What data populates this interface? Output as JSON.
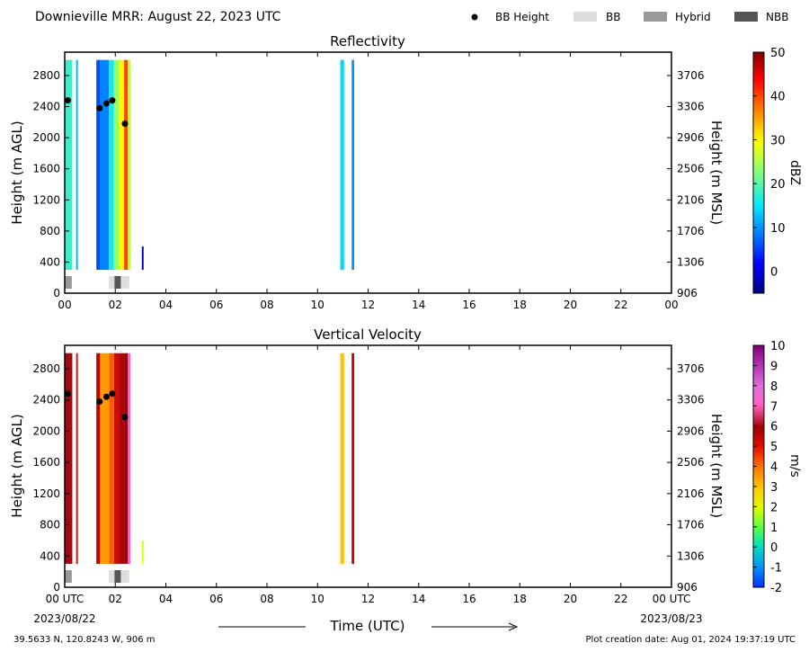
{
  "header": {
    "title": "Downieville MRR:  August 22, 2023 UTC",
    "legend": [
      {
        "label": "BB Height",
        "kind": "dot",
        "color": "#000000"
      },
      {
        "label": "BB",
        "kind": "box",
        "color": "#dddddd"
      },
      {
        "label": "Hybrid",
        "kind": "box",
        "color": "#999999"
      },
      {
        "label": "NBB",
        "kind": "box",
        "color": "#555555"
      }
    ]
  },
  "footer": {
    "location": "39.5633 N, 120.8243 W, 906 m",
    "created": "Plot creation date: Aug 01, 2024 19:37:19 UTC",
    "xlabel": "Time (UTC)",
    "start_date": "2023/08/22",
    "end_date": "2023/08/23"
  },
  "chart_data": [
    {
      "type": "heatmap",
      "title": "Reflectivity",
      "ylabel": "Height (m AGL)",
      "y2label": "Height (m MSL)",
      "cbar_label": "dBZ",
      "xlim": [
        0,
        24
      ],
      "ylim": [
        0,
        3100
      ],
      "x_ticks": [
        "00",
        "02",
        "04",
        "06",
        "08",
        "10",
        "12",
        "14",
        "16",
        "18",
        "20",
        "22",
        "00"
      ],
      "y_ticks": [
        "0",
        "400",
        "800",
        "1200",
        "1600",
        "2000",
        "2400",
        "2800"
      ],
      "y2_ticks": [
        "906",
        "1306",
        "1706",
        "2106",
        "2506",
        "2906",
        "3306",
        "3706"
      ],
      "cbar_ticks": [
        "0",
        "10",
        "20",
        "30",
        "40",
        "50"
      ],
      "cbar_range": [
        -5,
        50
      ],
      "bb_height_points": [
        {
          "time": 0.12,
          "height": 2480
        },
        {
          "time": 1.38,
          "height": 2380
        },
        {
          "time": 1.65,
          "height": 2440
        },
        {
          "time": 1.88,
          "height": 2480
        },
        {
          "time": 2.38,
          "height": 2180
        }
      ],
      "bb_type_bars": [
        {
          "start": 0.0,
          "end": 0.28,
          "type": "Hybrid"
        },
        {
          "start": 1.75,
          "end": 1.97,
          "type": "BB"
        },
        {
          "start": 1.97,
          "end": 2.22,
          "type": "NBB"
        },
        {
          "start": 2.22,
          "end": 2.55,
          "type": "BB"
        }
      ],
      "echo_columns": [
        {
          "start": 0.0,
          "end": 0.3,
          "bottom": 300,
          "top": 3000,
          "value": 18
        },
        {
          "start": 0.45,
          "end": 0.52,
          "bottom": 300,
          "top": 3000,
          "value": 12
        },
        {
          "start": 1.25,
          "end": 1.4,
          "bottom": 300,
          "top": 3000,
          "value": 6
        },
        {
          "start": 1.4,
          "end": 1.75,
          "bottom": 300,
          "top": 3000,
          "value": 9
        },
        {
          "start": 1.75,
          "end": 1.95,
          "bottom": 300,
          "top": 3000,
          "value": 16
        },
        {
          "start": 1.95,
          "end": 2.15,
          "bottom": 300,
          "top": 3000,
          "value": 24
        },
        {
          "start": 2.15,
          "end": 2.35,
          "bottom": 300,
          "top": 3000,
          "value": 30
        },
        {
          "start": 2.35,
          "end": 2.5,
          "bottom": 300,
          "top": 3000,
          "value": 40
        },
        {
          "start": 2.5,
          "end": 2.6,
          "bottom": 300,
          "top": 3000,
          "value": 26
        },
        {
          "start": 3.05,
          "end": 3.12,
          "bottom": 300,
          "top": 600,
          "value": -3
        },
        {
          "start": 10.9,
          "end": 11.05,
          "bottom": 300,
          "top": 3000,
          "value": 14
        },
        {
          "start": 11.35,
          "end": 11.45,
          "bottom": 300,
          "top": 3000,
          "value": 10
        }
      ]
    },
    {
      "type": "heatmap",
      "title": "Vertical Velocity",
      "ylabel": "Height (m AGL)",
      "y2label": "Height (m MSL)",
      "cbar_label": "m/s",
      "xlim": [
        0,
        24
      ],
      "ylim": [
        0,
        3100
      ],
      "x_ticks": [
        "00 UTC",
        "02",
        "04",
        "06",
        "08",
        "10",
        "12",
        "14",
        "16",
        "18",
        "20",
        "22",
        "00 UTC"
      ],
      "y_ticks": [
        "0",
        "400",
        "800",
        "1200",
        "1600",
        "2000",
        "2400",
        "2800"
      ],
      "y2_ticks": [
        "906",
        "1306",
        "1706",
        "2106",
        "2506",
        "2906",
        "3306",
        "3706"
      ],
      "cbar_ticks": [
        "-2",
        "-1",
        "0",
        "1",
        "2",
        "3",
        "4",
        "5",
        "6",
        "7",
        "8",
        "9",
        "10"
      ],
      "cbar_range": [
        -2,
        10
      ],
      "bb_height_points": [
        {
          "time": 0.12,
          "height": 2480
        },
        {
          "time": 1.38,
          "height": 2380
        },
        {
          "time": 1.65,
          "height": 2440
        },
        {
          "time": 1.88,
          "height": 2480
        },
        {
          "time": 2.38,
          "height": 2180
        }
      ],
      "bb_type_bars": [
        {
          "start": 0.0,
          "end": 0.28,
          "type": "Hybrid"
        },
        {
          "start": 1.75,
          "end": 1.97,
          "type": "BB"
        },
        {
          "start": 1.97,
          "end": 2.22,
          "type": "NBB"
        },
        {
          "start": 2.22,
          "end": 2.55,
          "type": "BB"
        }
      ],
      "echo_columns": [
        {
          "start": 0.0,
          "end": 0.3,
          "bottom": 300,
          "top": 3000,
          "value": 6
        },
        {
          "start": 0.45,
          "end": 0.52,
          "bottom": 300,
          "top": 3000,
          "value": 5
        },
        {
          "start": 1.25,
          "end": 1.4,
          "bottom": 300,
          "top": 3000,
          "value": 5.5
        },
        {
          "start": 1.4,
          "end": 1.75,
          "bottom": 300,
          "top": 3000,
          "value": 3.5
        },
        {
          "start": 1.75,
          "end": 1.95,
          "bottom": 300,
          "top": 3000,
          "value": 4.2
        },
        {
          "start": 1.95,
          "end": 2.15,
          "bottom": 300,
          "top": 3000,
          "value": 5.2
        },
        {
          "start": 2.15,
          "end": 2.35,
          "bottom": 300,
          "top": 3000,
          "value": 6
        },
        {
          "start": 2.35,
          "end": 2.5,
          "bottom": 300,
          "top": 3000,
          "value": 5.8
        },
        {
          "start": 2.5,
          "end": 2.6,
          "bottom": 300,
          "top": 3000,
          "value": 7.5
        },
        {
          "start": 3.05,
          "end": 3.12,
          "bottom": 300,
          "top": 600,
          "value": 2
        },
        {
          "start": 10.9,
          "end": 11.05,
          "bottom": 300,
          "top": 3000,
          "value": 3
        },
        {
          "start": 11.35,
          "end": 11.45,
          "bottom": 300,
          "top": 3000,
          "value": 5.5
        }
      ]
    }
  ]
}
